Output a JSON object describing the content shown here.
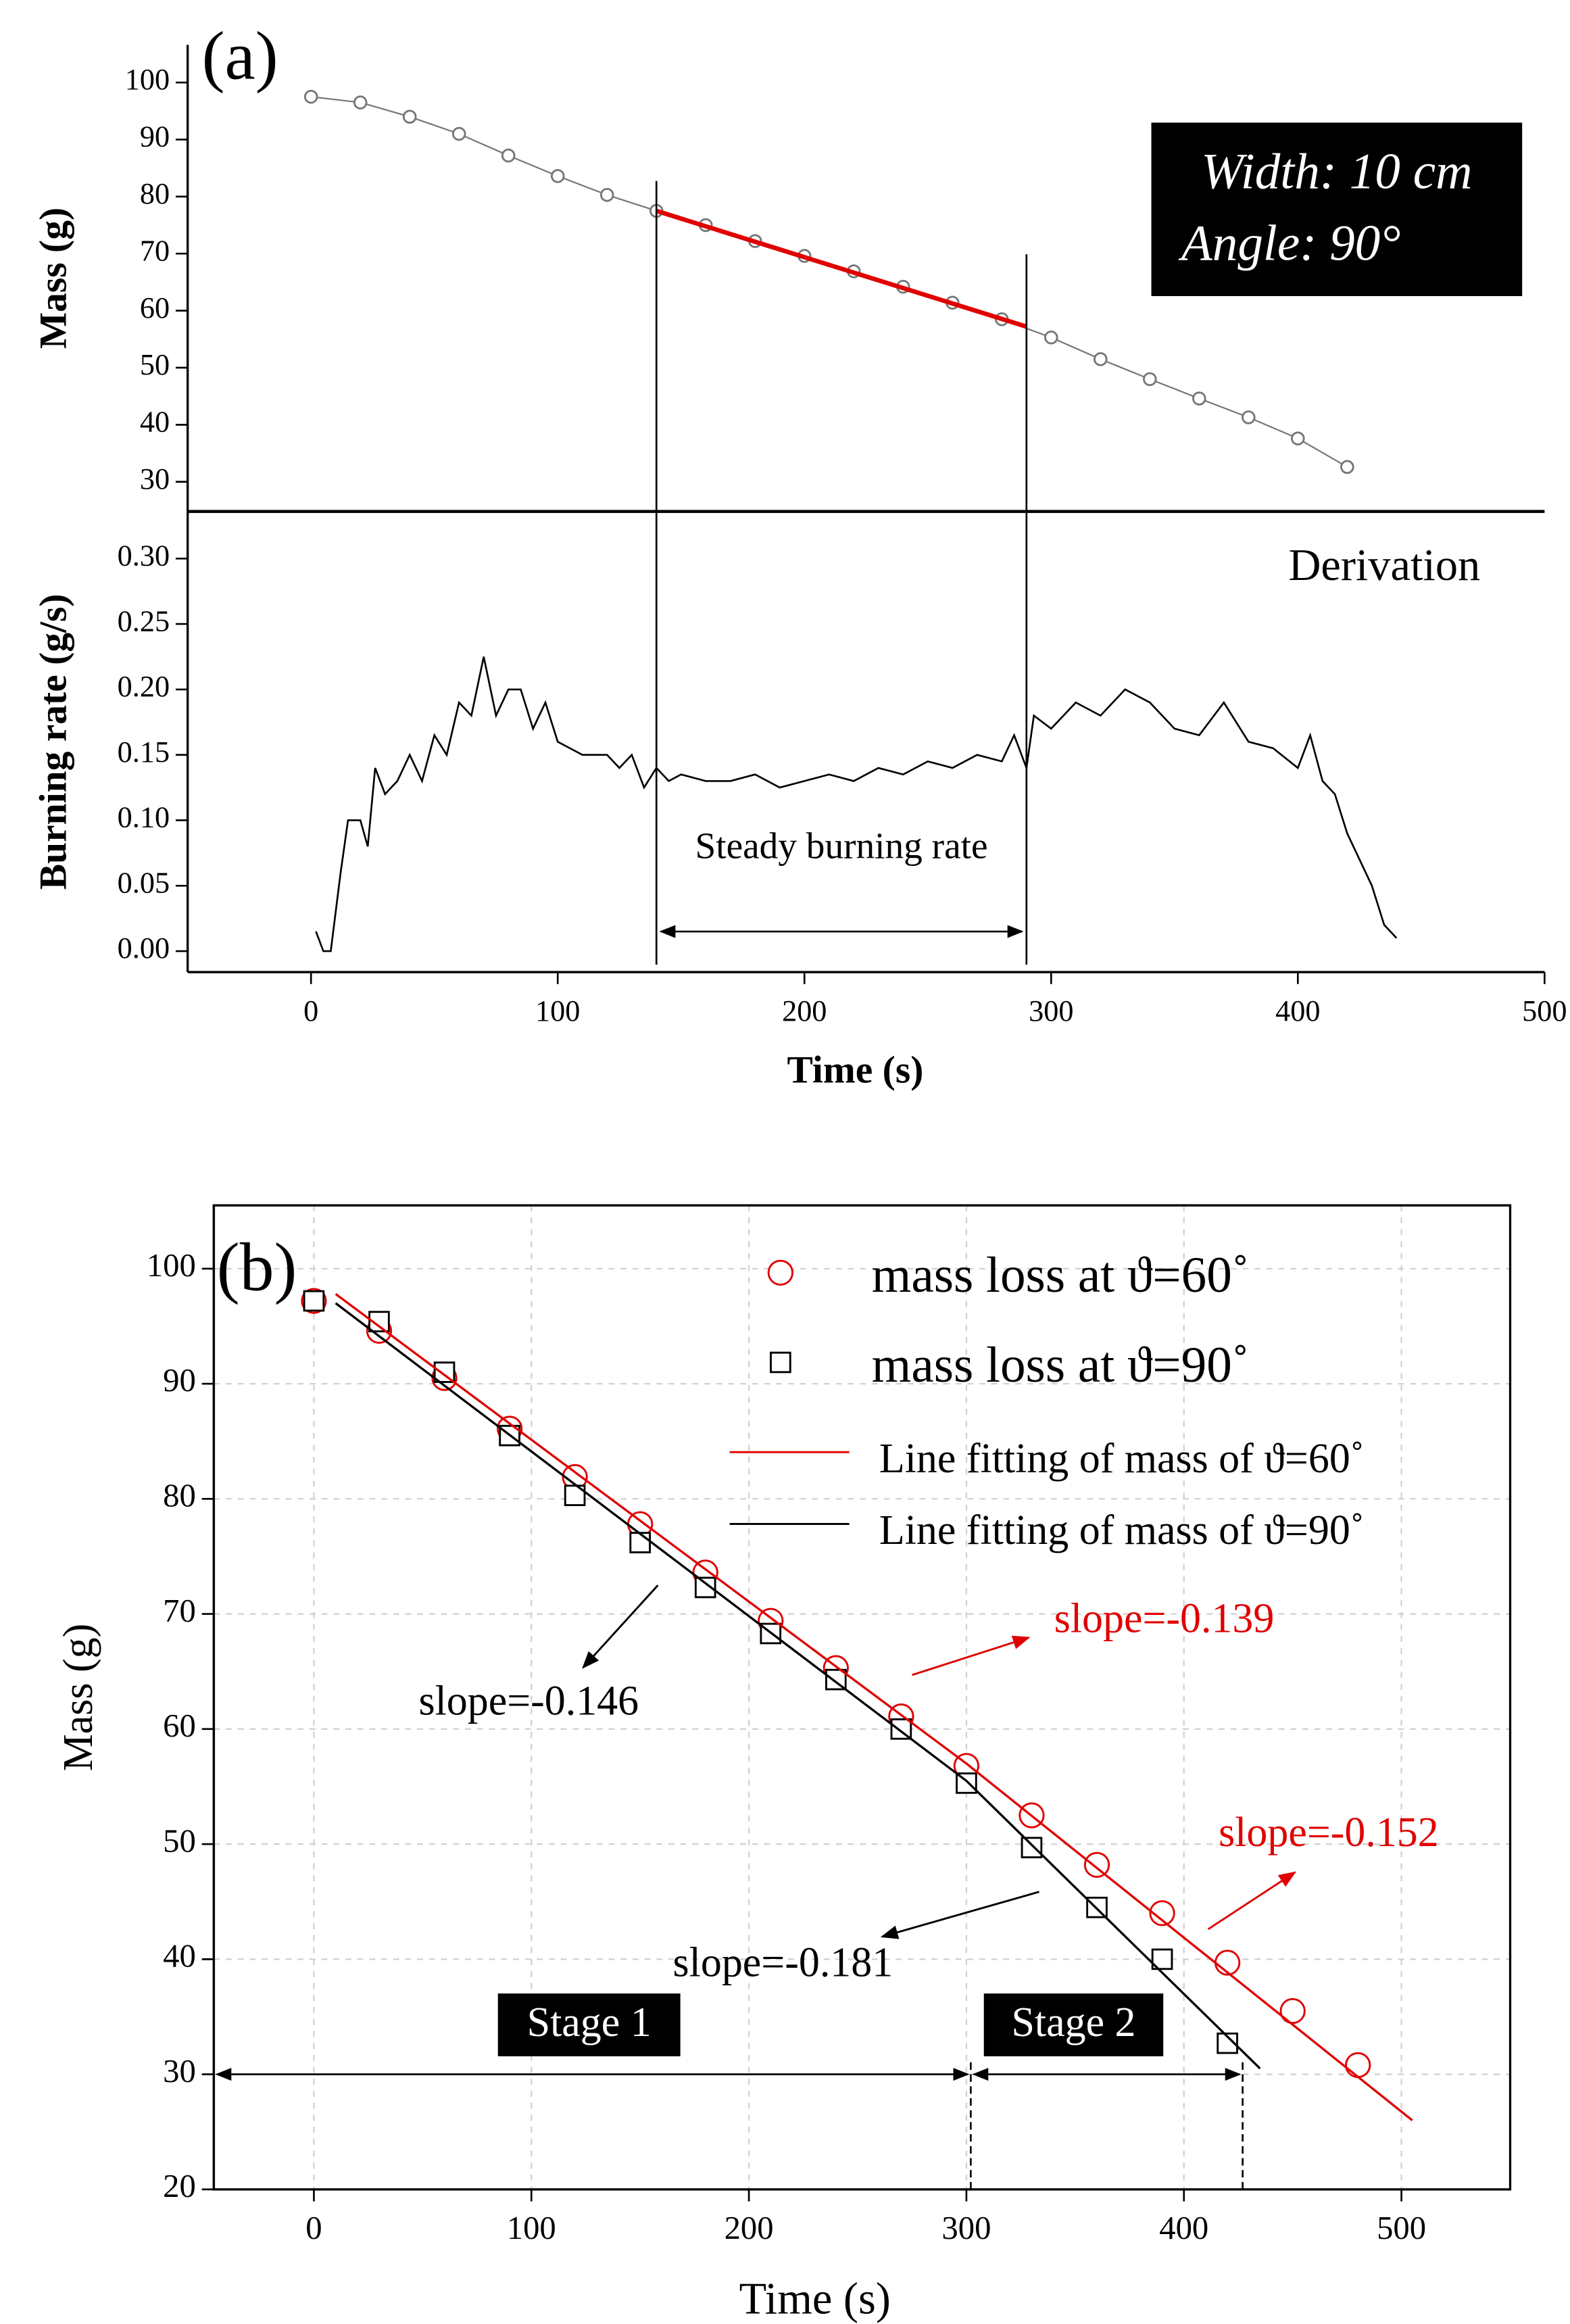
{
  "chart_data": [
    {
      "type": "line",
      "panel_label": "(a)",
      "ylabel": "Mass (g)",
      "xlim": [
        -50,
        500
      ],
      "ylim": [
        24.8,
        106.6
      ],
      "yticks": [
        30,
        40,
        50,
        60,
        70,
        80,
        90,
        100
      ],
      "grid": false,
      "series": [
        {
          "color": "#777777",
          "marker": "circle",
          "line": true,
          "line_width": 1,
          "x": [
            0,
            20,
            40,
            60,
            80,
            100,
            120,
            140,
            160,
            180,
            200,
            220,
            240,
            260,
            280,
            300,
            320,
            340,
            360,
            380,
            400,
            420
          ],
          "values": [
            97.5,
            96.5,
            94,
            91,
            87.2,
            83.6,
            80.3,
            77.5,
            75,
            72.2,
            69.6,
            66.9,
            64.2,
            61.4,
            58.5,
            55.3,
            51.5,
            48,
            44.6,
            41.3,
            37.6,
            32.6
          ]
        },
        {
          "color": "#e00000",
          "marker": "none",
          "line": true,
          "line_width": 3,
          "x": [
            140,
            290
          ],
          "values": [
            77.5,
            57.2
          ]
        }
      ],
      "annotations": [
        {
          "text": "Width: 10 cm"
        },
        {
          "text": "Angle: 90°"
        }
      ]
    },
    {
      "type": "line",
      "ylabel": "Burning rate (g/s)",
      "xlabel": "Time (s)",
      "xlim": [
        -50,
        500
      ],
      "ylim": [
        -0.016,
        0.336
      ],
      "xticks": [
        0,
        100,
        200,
        300,
        400,
        500
      ],
      "yticks": [
        {
          "value": 0,
          "label": "0.00"
        },
        0.05,
        {
          "value": 0.1,
          "label": "0.10"
        },
        0.15,
        {
          "value": 0.2,
          "label": "0.20"
        },
        0.25,
        {
          "value": 0.3,
          "label": "0.30"
        }
      ],
      "grid": false,
      "vlines": [
        140,
        290
      ],
      "span_y": 0.015,
      "series": [
        {
          "color": "#000000",
          "marker": "none",
          "line": true,
          "line_width": 1.2,
          "x": [
            2,
            5,
            8,
            12,
            15,
            20,
            23,
            26,
            30,
            35,
            40,
            45,
            50,
            55,
            60,
            65,
            70,
            75,
            80,
            85,
            90,
            95,
            100,
            105,
            110,
            120,
            125,
            130,
            135,
            140,
            145,
            150,
            160,
            170,
            180,
            190,
            200,
            210,
            220,
            230,
            240,
            250,
            260,
            270,
            280,
            285,
            290,
            293,
            300,
            310,
            320,
            330,
            340,
            350,
            360,
            370,
            380,
            390,
            400,
            405,
            410,
            415,
            420,
            425,
            430,
            435,
            440
          ],
          "values": [
            0.015,
            0,
            0,
            0.06,
            0.1,
            0.1,
            0.08,
            0.14,
            0.12,
            0.13,
            0.15,
            0.13,
            0.165,
            0.15,
            0.19,
            0.18,
            0.225,
            0.18,
            0.2,
            0.2,
            0.17,
            0.19,
            0.16,
            0.155,
            0.15,
            0.15,
            0.14,
            0.15,
            0.125,
            0.14,
            0.13,
            0.135,
            0.13,
            0.13,
            0.135,
            0.125,
            0.13,
            0.135,
            0.13,
            0.14,
            0.135,
            0.145,
            0.14,
            0.15,
            0.145,
            0.165,
            0.14,
            0.18,
            0.17,
            0.19,
            0.18,
            0.2,
            0.19,
            0.17,
            0.165,
            0.19,
            0.16,
            0.155,
            0.14,
            0.165,
            0.13,
            0.12,
            0.09,
            0.07,
            0.05,
            0.02,
            0.01
          ]
        }
      ],
      "annotations": [
        {
          "text": "Derivation"
        },
        {
          "text": "Steady burning rate"
        }
      ]
    },
    {
      "type": "scatter",
      "panel_label": "(b)",
      "ylabel": "Mass (g)",
      "xlabel": "Time (s)",
      "xlim": [
        -46,
        550
      ],
      "ylim": [
        20,
        105.5
      ],
      "xticks": [
        0,
        100,
        200,
        300,
        400,
        500
      ],
      "yticks": [
        20,
        30,
        40,
        50,
        60,
        70,
        80,
        90,
        100
      ],
      "grid": true,
      "series": [
        {
          "name": "mass loss at ϑ=60˚",
          "color": "#e00000",
          "marker": "circle",
          "line": false,
          "x": [
            0,
            30,
            60,
            90,
            120,
            150,
            180,
            210,
            240,
            270,
            300,
            330,
            360,
            390,
            420,
            450,
            480
          ],
          "values": [
            97.2,
            94.6,
            90.5,
            86.1,
            81.9,
            77.8,
            73.6,
            69.4,
            65.3,
            61.1,
            56.8,
            52.5,
            48.2,
            44,
            39.7,
            35.5,
            30.8
          ]
        },
        {
          "name": "mass loss at ϑ=90˚",
          "color": "#000000",
          "marker": "square",
          "line": false,
          "x": [
            0,
            30,
            60,
            90,
            120,
            150,
            180,
            210,
            240,
            270,
            300,
            330,
            360,
            390,
            420
          ],
          "values": [
            97.2,
            95.4,
            91,
            85.5,
            80.3,
            76.2,
            72.3,
            68.3,
            64.3,
            60,
            55.3,
            49.7,
            44.5,
            40,
            32.7
          ]
        },
        {
          "name": "Line fitting of mass of  ϑ=60˚",
          "color": "#e00000",
          "marker": "none",
          "line": true,
          "line_width": 1.5,
          "x": [
            10,
            300,
            505
          ],
          "values": [
            97.8,
            57,
            26
          ]
        },
        {
          "name": "Line fitting of mass of  ϑ=90˚",
          "color": "#000000",
          "marker": "none",
          "line": true,
          "line_width": 1.5,
          "x": [
            10,
            300,
            435
          ],
          "values": [
            97,
            55.5,
            30.5
          ]
        }
      ],
      "stage_bounds": [
        302,
        427
      ],
      "stage_y": 30,
      "stages": [
        "Stage 1",
        "Stage 2"
      ],
      "annotations": [
        {
          "text": "slope=-0.146",
          "color": "#000000"
        },
        {
          "text": "slope=-0.139",
          "color": "#e00000"
        },
        {
          "text": "slope=-0.152",
          "color": "#e00000"
        },
        {
          "text": "slope=-0.181",
          "color": "#000000"
        }
      ]
    }
  ]
}
